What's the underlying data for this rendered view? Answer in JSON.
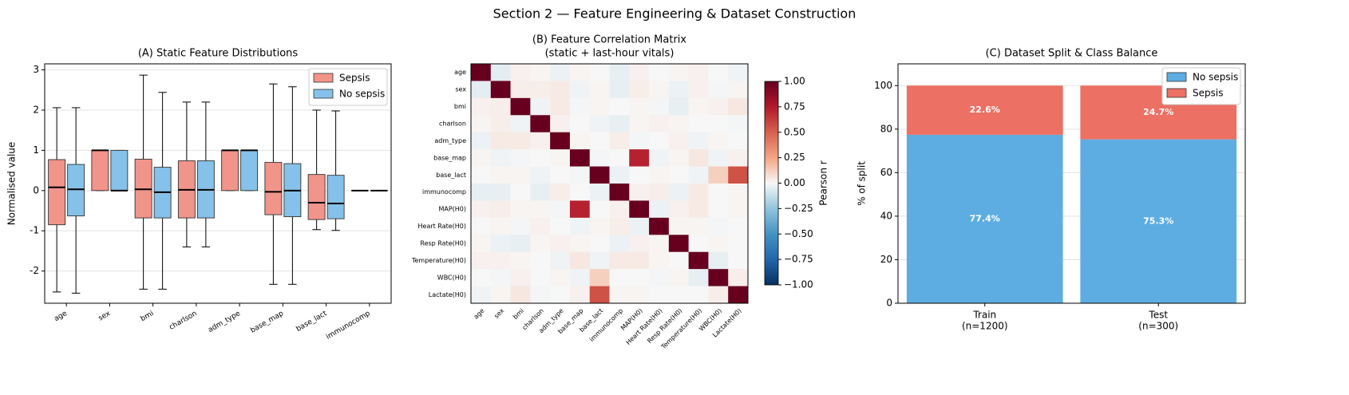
{
  "suptitle": "Section 2 — Feature Engineering & Dataset Construction",
  "chart_data": [
    {
      "type": "box",
      "title": "(A) Static Feature Distributions",
      "ylabel": "Normalised value",
      "categories": [
        "age",
        "sex",
        "bmi",
        "charlson",
        "adm_type",
        "base_map",
        "base_lact",
        "immunocomp"
      ],
      "series": [
        {
          "name": "Sepsis",
          "color": "#f1948a",
          "whislo": [
            -2.52,
            0,
            -2.45,
            -1.4,
            0,
            -2.33,
            -0.97,
            0
          ],
          "q1": [
            -0.85,
            0,
            -0.68,
            -0.68,
            0,
            -0.6,
            -0.72,
            0
          ],
          "med": [
            0.08,
            1,
            0.03,
            0.02,
            1,
            -0.03,
            -0.3,
            0
          ],
          "q3": [
            0.77,
            1,
            0.78,
            0.74,
            1,
            0.7,
            0.4,
            0
          ],
          "whishi": [
            2.06,
            1,
            2.87,
            2.2,
            1,
            2.65,
            2.0,
            0
          ]
        },
        {
          "name": "No sepsis",
          "color": "#85c1e9",
          "whislo": [
            -2.55,
            0,
            -2.45,
            -1.4,
            0,
            -2.33,
            -0.99,
            0
          ],
          "q1": [
            -0.63,
            0,
            -0.68,
            -0.68,
            0,
            -0.65,
            -0.7,
            0
          ],
          "med": [
            0.03,
            0,
            -0.04,
            0.02,
            1,
            0.0,
            -0.32,
            0
          ],
          "q3": [
            0.65,
            1,
            0.58,
            0.74,
            1,
            0.67,
            0.38,
            0
          ],
          "whishi": [
            2.06,
            1,
            2.44,
            2.2,
            1,
            2.58,
            1.98,
            0
          ]
        }
      ],
      "ylim": [
        -2.8,
        3.15
      ],
      "yticks": [
        -2,
        -1,
        0,
        1,
        2,
        3
      ],
      "grid": true,
      "legend": "upper right"
    },
    {
      "type": "heatmap",
      "title": "(B) Feature Correlation Matrix",
      "subtitle": "(static + last-hour vitals)",
      "labels": [
        "age",
        "sex",
        "bmi",
        "charlson",
        "adm_type",
        "base_map",
        "base_lact",
        "immunocomp",
        "MAP(H0)",
        "Heart Rate(H0)",
        "Resp Rate(H0)",
        "Temperature(H0)",
        "WBC(H0)",
        "Lactate(H0)"
      ],
      "matrix": [
        [
          1,
          -0.05,
          0.02,
          0.01,
          -0.03,
          0.01,
          0,
          -0.04,
          0.02,
          0,
          0.01,
          0.02,
          0,
          -0.02
        ],
        [
          -0.05,
          1,
          0.03,
          0.03,
          0.04,
          -0.02,
          0.01,
          -0.04,
          0.03,
          0.01,
          -0.03,
          0.02,
          -0.01,
          0.01
        ],
        [
          0.02,
          0.03,
          1,
          -0.02,
          0.04,
          -0.01,
          0.01,
          0,
          0.01,
          -0.01,
          -0.04,
          0.01,
          0.02,
          0.05
        ],
        [
          0.01,
          0.03,
          -0.02,
          1,
          0.02,
          0,
          -0.02,
          -0.04,
          0.01,
          0.02,
          0.01,
          0,
          0,
          -0.01
        ],
        [
          -0.03,
          0.04,
          0.04,
          0.02,
          1,
          0.01,
          0,
          0.03,
          -0.01,
          0,
          0.02,
          -0.02,
          0.01,
          0
        ],
        [
          0.01,
          -0.02,
          -0.01,
          0,
          0.01,
          1,
          -0.01,
          0,
          0.72,
          -0.02,
          0.01,
          0.05,
          -0.02,
          0.02
        ],
        [
          0,
          0.01,
          0.01,
          -0.02,
          0,
          -0.01,
          1,
          -0.03,
          0,
          0.01,
          0,
          -0.02,
          0.12,
          0.55
        ],
        [
          -0.04,
          -0.04,
          0,
          -0.04,
          0.03,
          0,
          -0.03,
          1,
          0.02,
          0.03,
          -0.03,
          0.04,
          0,
          0.01
        ],
        [
          0.02,
          0.03,
          0.01,
          0.01,
          -0.01,
          0.72,
          0,
          0.02,
          1,
          -0.03,
          0.02,
          0.04,
          0,
          0.01
        ],
        [
          0,
          0.01,
          -0.01,
          0.02,
          0,
          -0.02,
          0.01,
          0.03,
          -0.03,
          1,
          0.01,
          0.01,
          -0.01,
          0
        ],
        [
          0.01,
          -0.03,
          -0.04,
          0.01,
          0.02,
          0.01,
          0,
          -0.03,
          0.02,
          0.01,
          1,
          0,
          0.01,
          0
        ],
        [
          0.02,
          0.02,
          0.01,
          0,
          -0.02,
          0.05,
          -0.02,
          0.04,
          0.04,
          0.01,
          0,
          1,
          -0.04,
          0
        ],
        [
          0,
          -0.01,
          0.02,
          0,
          0.01,
          -0.02,
          0.12,
          0,
          0,
          -0.01,
          0.01,
          -0.04,
          1,
          0.03
        ],
        [
          -0.02,
          0.01,
          0.05,
          -0.01,
          0,
          0.02,
          0.55,
          0.01,
          0.01,
          0,
          0,
          0,
          0.03,
          1
        ]
      ],
      "colormap": "RdBu_r",
      "clim": [
        -1,
        1
      ],
      "cticks": [
        {
          "value": -1,
          "label": "−1.00"
        },
        {
          "value": -0.75,
          "label": "−0.75"
        },
        {
          "value": -0.5,
          "label": "−0.50"
        },
        {
          "value": -0.25,
          "label": "−0.25"
        },
        {
          "value": 0,
          "label": "0.00"
        },
        {
          "value": 0.25,
          "label": "0.25"
        },
        {
          "value": 0.5,
          "label": "0.50"
        },
        {
          "value": 0.75,
          "label": "0.75"
        },
        {
          "value": 1,
          "label": "1.00"
        }
      ],
      "colorbar_label": "Pearson r"
    },
    {
      "type": "stacked_bar",
      "title": "(C) Dataset Split & Class Balance",
      "ylabel": "% of split",
      "categories": [
        "Train",
        "Test"
      ],
      "category_sublabels": [
        "(n=1200)",
        "(n=300)"
      ],
      "series": [
        {
          "name": "No sepsis",
          "color": "#5dade2",
          "values": [
            77.4,
            75.3
          ],
          "value_labels": [
            "77.4%",
            "75.3%"
          ]
        },
        {
          "name": "Sepsis",
          "color": "#ec7063",
          "values": [
            22.6,
            24.7
          ],
          "value_labels": [
            "22.6%",
            "24.7%"
          ]
        }
      ],
      "ylim": [
        0,
        110
      ],
      "yticks": [
        0,
        20,
        40,
        60,
        80,
        100
      ],
      "grid": true,
      "legend": "upper right"
    }
  ]
}
